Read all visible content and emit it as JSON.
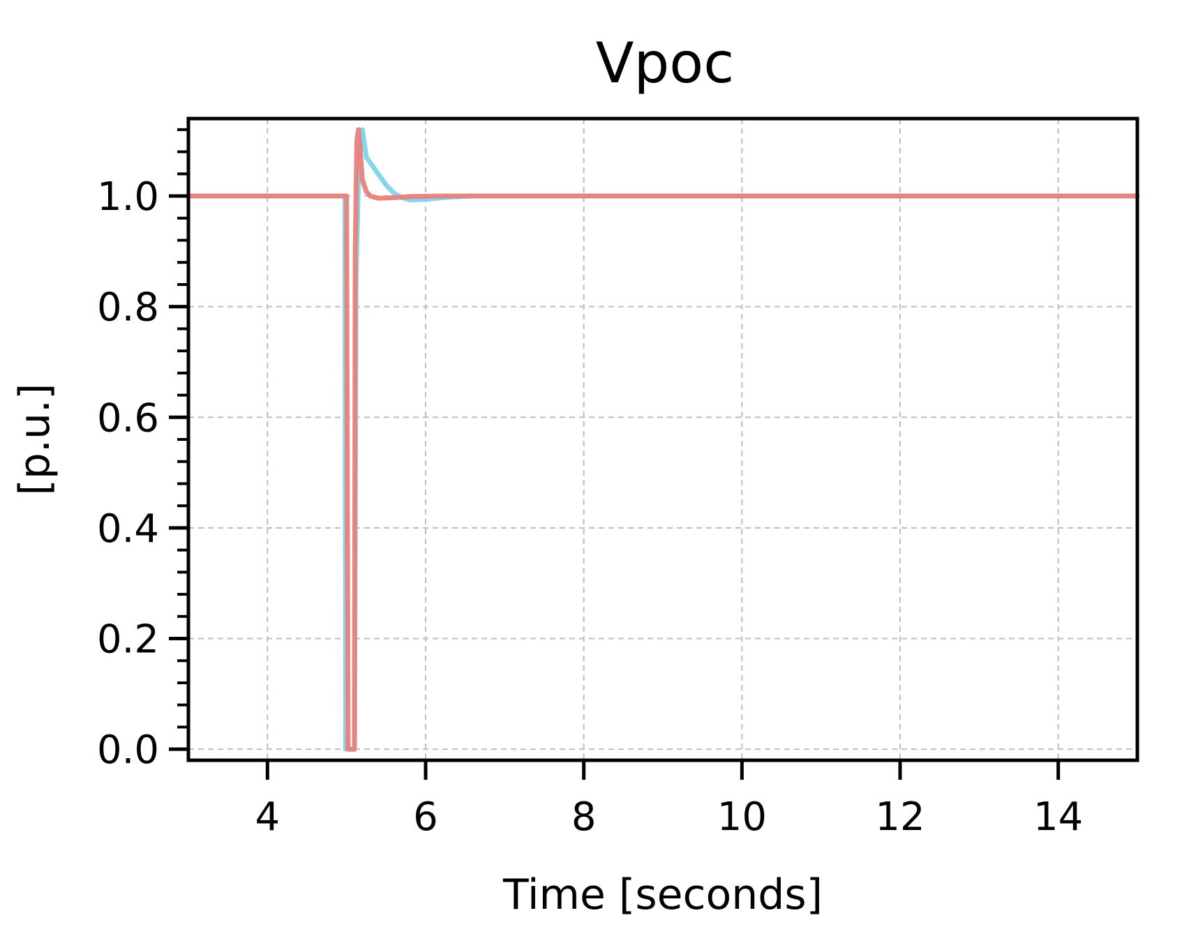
{
  "chart_data": {
    "type": "line",
    "title": "Vpoc",
    "xlabel": "Time [seconds]",
    "ylabel": "[p.u.]",
    "xlim": [
      3,
      15
    ],
    "ylim": [
      -0.02,
      1.14
    ],
    "xticks": [
      4,
      6,
      8,
      10,
      12,
      14
    ],
    "yticks": [
      0.0,
      0.2,
      0.4,
      0.6,
      0.8,
      1.0
    ],
    "xtick_labels": [
      "4",
      "6",
      "8",
      "10",
      "12",
      "14"
    ],
    "ytick_labels": [
      "0.0",
      "0.2",
      "0.4",
      "0.6",
      "0.8",
      "1.0"
    ],
    "grid": true,
    "legend": "none",
    "series": [
      {
        "color": "#7fd3ea",
        "points": [
          [
            3.0,
            1.0
          ],
          [
            4.98,
            1.0
          ],
          [
            4.99,
            0.0
          ],
          [
            5.1,
            0.0
          ],
          [
            5.12,
            0.85
          ],
          [
            5.15,
            1.03
          ],
          [
            5.18,
            1.1
          ],
          [
            5.2,
            1.12
          ],
          [
            5.22,
            1.1
          ],
          [
            5.25,
            1.07
          ],
          [
            5.3,
            1.06
          ],
          [
            5.4,
            1.04
          ],
          [
            5.5,
            1.02
          ],
          [
            5.6,
            1.005
          ],
          [
            5.7,
            0.997
          ],
          [
            5.8,
            0.993
          ],
          [
            6.0,
            0.994
          ],
          [
            6.3,
            0.998
          ],
          [
            6.6,
            1.0
          ],
          [
            15.0,
            1.0
          ]
        ]
      },
      {
        "color": "#e8827c",
        "points": [
          [
            3.0,
            1.0
          ],
          [
            5.0,
            1.0
          ],
          [
            5.02,
            0.0
          ],
          [
            5.1,
            0.0
          ],
          [
            5.11,
            0.9
          ],
          [
            5.13,
            1.1
          ],
          [
            5.15,
            1.12
          ],
          [
            5.17,
            1.09
          ],
          [
            5.2,
            1.03
          ],
          [
            5.25,
            1.008
          ],
          [
            5.3,
            1.0
          ],
          [
            5.4,
            0.996
          ],
          [
            5.6,
            0.997
          ],
          [
            5.8,
            0.999
          ],
          [
            6.2,
            1.0
          ],
          [
            15.0,
            1.0
          ]
        ]
      }
    ]
  }
}
